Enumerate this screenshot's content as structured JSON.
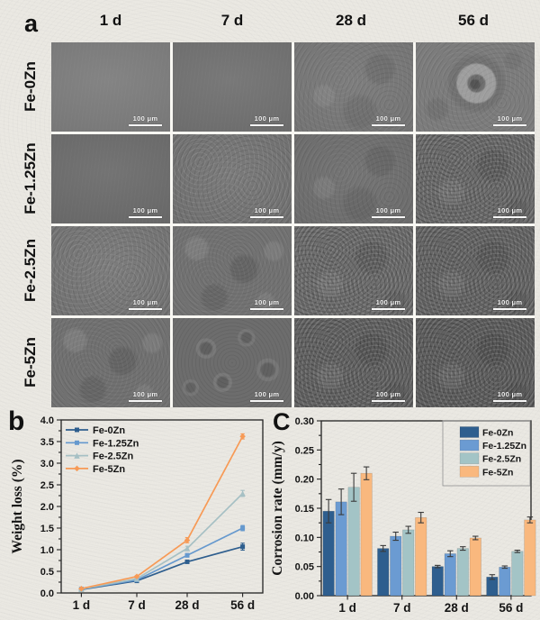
{
  "panels": {
    "a_label": "a",
    "b_label": "b",
    "c_label": "C"
  },
  "panel_a": {
    "columns": [
      "1 d",
      "7 d",
      "28 d",
      "56 d"
    ],
    "rows": [
      "Fe-0Zn",
      "Fe-1.25Zn",
      "Fe-2.5Zn",
      "Fe-5Zn"
    ],
    "scale_bar_label": "100 μm",
    "cells": [
      [
        {
          "texture": "smooth",
          "shade": "#7d7d7d"
        },
        {
          "texture": "smooth",
          "shade": "#717171"
        },
        {
          "texture": "mottle",
          "shade": "#7a7a7a"
        },
        {
          "texture": "pit",
          "shade": "#7c7c7c"
        }
      ],
      [
        {
          "texture": "smooth",
          "shade": "#6c6c6c"
        },
        {
          "texture": "fine",
          "shade": "#757575"
        },
        {
          "texture": "mottle",
          "shade": "#717171"
        },
        {
          "texture": "rough",
          "shade": "#6d6d6d"
        }
      ],
      [
        {
          "texture": "fine",
          "shade": "#777777"
        },
        {
          "texture": "blotch",
          "shade": "#727272"
        },
        {
          "texture": "rough",
          "shade": "#6f6f6f"
        },
        {
          "texture": "rough",
          "shade": "#686868"
        }
      ],
      [
        {
          "texture": "blotch",
          "shade": "#717171"
        },
        {
          "texture": "blobs",
          "shade": "#6d6d6d"
        },
        {
          "texture": "rough",
          "shade": "#656565"
        },
        {
          "texture": "rough",
          "shade": "#616161"
        }
      ]
    ]
  },
  "chart_data": [
    {
      "panel": "b",
      "type": "line",
      "categories": [
        "1 d",
        "7 d",
        "28 d",
        "56 d"
      ],
      "series": [
        {
          "name": "Fe-0Zn",
          "color": "#2e5e8e",
          "marker": "square",
          "values": [
            0.08,
            0.28,
            0.72,
            1.07
          ],
          "errors": [
            0.01,
            0.015,
            0.03,
            0.08
          ]
        },
        {
          "name": "Fe-1.25Zn",
          "color": "#6699ce",
          "marker": "square",
          "values": [
            0.09,
            0.3,
            0.87,
            1.5
          ],
          "errors": [
            0.01,
            0.015,
            0.04,
            0.06
          ]
        },
        {
          "name": "Fe-2.5Zn",
          "color": "#a6c0c4",
          "marker": "triangle",
          "values": [
            0.09,
            0.33,
            1.03,
            2.3
          ],
          "errors": [
            0.01,
            0.02,
            0.05,
            0.07
          ]
        },
        {
          "name": "Fe-5Zn",
          "color": "#f79a56",
          "marker": "diamond",
          "values": [
            0.1,
            0.38,
            1.22,
            3.62
          ],
          "errors": [
            0.01,
            0.02,
            0.06,
            0.06
          ]
        }
      ],
      "ylabel": "Weight loss (%)",
      "ylim": [
        0,
        4.0
      ],
      "ytick_step": 0.5,
      "ytick_decimals": 1,
      "grid": false,
      "legend_position": "top-left"
    },
    {
      "panel": "c",
      "type": "bar",
      "categories": [
        "1 d",
        "7 d",
        "28 d",
        "56 d"
      ],
      "series": [
        {
          "name": "Fe-0Zn",
          "color": "#2e5e8e",
          "values": [
            0.145,
            0.081,
            0.05,
            0.032
          ],
          "errors": [
            0.02,
            0.005,
            0.002,
            0.004
          ]
        },
        {
          "name": "Fe-1.25Zn",
          "color": "#6b9bd2",
          "values": [
            0.161,
            0.102,
            0.072,
            0.049
          ],
          "errors": [
            0.022,
            0.007,
            0.005,
            0.002
          ]
        },
        {
          "name": "Fe-2.5Zn",
          "color": "#a3c4c6",
          "values": [
            0.186,
            0.113,
            0.081,
            0.076
          ],
          "errors": [
            0.024,
            0.006,
            0.003,
            0.002
          ]
        },
        {
          "name": "Fe-5Zn",
          "color": "#f9b87e",
          "values": [
            0.21,
            0.134,
            0.099,
            0.13
          ],
          "errors": [
            0.011,
            0.009,
            0.003,
            0.005
          ]
        }
      ],
      "ylabel": "Corrosion rate (mm/y)",
      "ylim": [
        0,
        0.3
      ],
      "ytick_step": 0.05,
      "ytick_decimals": 2,
      "grid": false,
      "legend_position": "top-right"
    }
  ]
}
